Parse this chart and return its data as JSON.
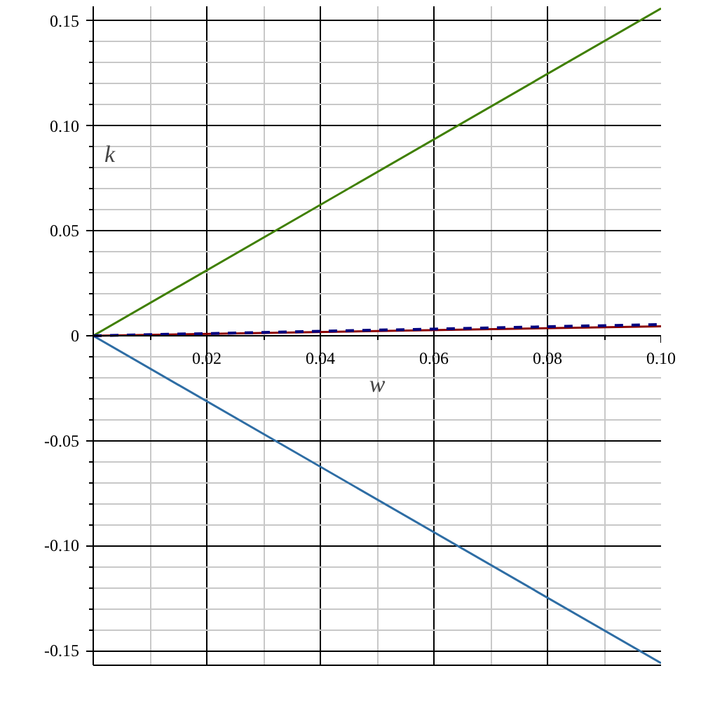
{
  "chart_data": {
    "type": "line",
    "xlabel": "w",
    "ylabel": "k",
    "x": [
      0,
      0.1
    ],
    "series": [
      {
        "color": "#3f7f00",
        "values": [
          0,
          0.156
        ]
      },
      {
        "color": "#2e6da4",
        "values": [
          0,
          -0.156
        ]
      },
      {
        "color": "#8b0000",
        "values": [
          0,
          0.0045
        ]
      },
      {
        "color": "#00007f",
        "values": [
          0,
          0.0054
        ],
        "line_style": "dashed"
      }
    ],
    "xlim": [
      0,
      0.1
    ],
    "ylim": [
      -0.157,
      0.157
    ],
    "xticks": [
      {
        "value": 0,
        "label": null
      },
      0.02,
      0.04,
      0.06,
      0.08,
      {
        "value": 0.1,
        "label": "0.10"
      }
    ],
    "yticks": [
      -0.15,
      {
        "value": -0.1,
        "label": "-0.10"
      },
      -0.05,
      0,
      0.05,
      {
        "value": 0.1,
        "label": "0.10"
      },
      0.15
    ],
    "grid": true
  }
}
